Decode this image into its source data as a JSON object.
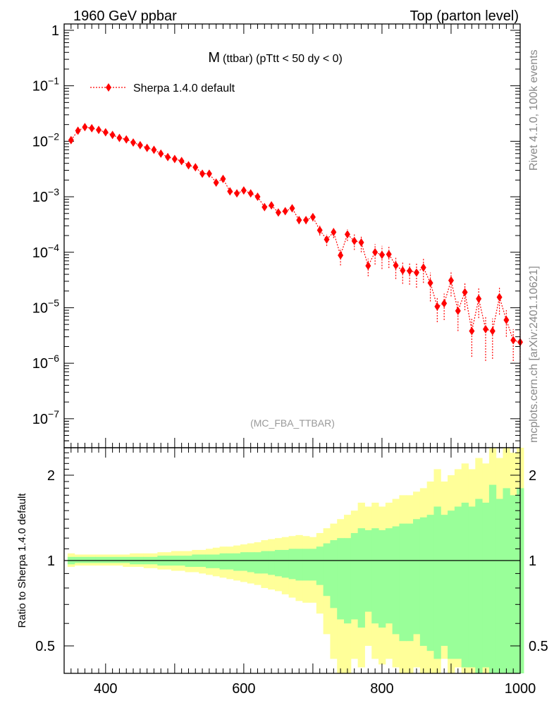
{
  "header": {
    "left": "1960 GeV ppbar",
    "right": "Top (parton level)"
  },
  "side_labels": {
    "rivet": "Rivet 4.1.0,  100k events",
    "mcplots": "mcplots.cern.ch [arXiv:2401.10621]"
  },
  "chart_data": [
    {
      "type": "line",
      "title_main": "M",
      "title_rest": "(ttbar) (pTtt < 50 dy < 0)",
      "watermark": "(MC_FBA_TTBAR)",
      "xlabel": "",
      "ylabel": "",
      "yscale": "log",
      "xlim": [
        340,
        1000
      ],
      "ylim": [
        3e-08,
        1.3
      ],
      "y_ticks": [
        {
          "value": 1,
          "base": "1",
          "exp": ""
        },
        {
          "value": 0.1,
          "base": "10",
          "exp": "−1"
        },
        {
          "value": 0.01,
          "base": "10",
          "exp": "−2"
        },
        {
          "value": 0.001,
          "base": "10",
          "exp": "−3"
        },
        {
          "value": 0.0001,
          "base": "10",
          "exp": "−4"
        },
        {
          "value": 1e-05,
          "base": "10",
          "exp": "−5"
        },
        {
          "value": 1e-06,
          "base": "10",
          "exp": "−6"
        },
        {
          "value": 1e-07,
          "base": "10",
          "exp": "−7"
        }
      ],
      "series": [
        {
          "name": "Sherpa 1.4.0 default",
          "color": "#ff0000",
          "x": [
            350,
            360,
            370,
            380,
            390,
            400,
            410,
            420,
            430,
            440,
            450,
            460,
            470,
            480,
            490,
            500,
            510,
            520,
            530,
            540,
            550,
            560,
            570,
            580,
            590,
            600,
            610,
            620,
            630,
            640,
            650,
            660,
            670,
            680,
            690,
            700,
            710,
            720,
            730,
            740,
            750,
            760,
            770,
            780,
            790,
            800,
            810,
            820,
            830,
            840,
            850,
            860,
            870,
            880,
            890,
            900,
            910,
            920,
            930,
            940,
            950,
            960,
            970,
            980,
            990,
            1000
          ],
          "y": [
            0.0105,
            0.0155,
            0.018,
            0.0172,
            0.016,
            0.0145,
            0.013,
            0.0115,
            0.0108,
            0.0095,
            0.0085,
            0.0076,
            0.007,
            0.006,
            0.0052,
            0.0048,
            0.0044,
            0.0037,
            0.0034,
            0.0026,
            0.0026,
            0.0018,
            0.0021,
            0.00125,
            0.00115,
            0.0013,
            0.00115,
            0.001,
            0.00065,
            0.0007,
            0.00052,
            0.00055,
            0.00062,
            0.00038,
            0.00038,
            0.00043,
            0.00025,
            0.00017,
            0.00023,
            8.8e-05,
            0.00021,
            0.00016,
            0.00015,
            5.7e-05,
            0.0001,
            9e-05,
            9.2e-05,
            5.8e-05,
            4.7e-05,
            4.6e-05,
            4.3e-05,
            5.3e-05,
            2.8e-05,
            1.05e-05,
            1.2e-05,
            3.1e-05,
            8.8e-06,
            1.9e-05,
            3.8e-06,
            1.45e-05,
            4.1e-06,
            3.8e-06,
            1.55e-05,
            6e-06,
            2.6e-06,
            2.4e-06
          ],
          "y_err_lo": [
            0.0003,
            0.0004,
            0.0005,
            0.0005,
            0.0004,
            0.0004,
            0.0004,
            0.0003,
            0.0003,
            0.0003,
            0.0003,
            0.0003,
            0.0003,
            0.0002,
            0.0002,
            0.0002,
            0.0002,
            0.0002,
            0.0002,
            0.0002,
            0.0002,
            0.00015,
            0.00015,
            0.0001,
            0.0001,
            0.0001,
            0.0001,
            0.0001,
            7e-05,
            8e-05,
            6e-05,
            7e-05,
            8e-05,
            6e-05,
            6e-05,
            7e-05,
            5e-05,
            4e-05,
            5e-05,
            3e-05,
            5e-05,
            5e-05,
            5e-05,
            2e-05,
            4e-05,
            4e-05,
            4e-05,
            2.5e-05,
            2e-05,
            2e-05,
            2e-05,
            2.5e-05,
            1.5e-05,
            5e-06,
            6e-06,
            1.5e-05,
            5e-06,
            1e-05,
            2.5e-06,
            8e-06,
            3e-06,
            2.6e-06,
            8e-06,
            3e-06,
            1.5e-06,
            1.4e-06
          ],
          "y_err_hi": [
            0.0003,
            0.0004,
            0.0005,
            0.0005,
            0.0004,
            0.0004,
            0.0004,
            0.0003,
            0.0003,
            0.0003,
            0.0003,
            0.0003,
            0.0003,
            0.0002,
            0.0002,
            0.0002,
            0.0002,
            0.0002,
            0.0002,
            0.0002,
            0.0002,
            0.00015,
            0.00015,
            0.0001,
            0.0001,
            0.0001,
            0.0001,
            0.0001,
            7e-05,
            8e-05,
            6e-05,
            7e-05,
            8e-05,
            6e-05,
            6e-05,
            7e-05,
            5e-05,
            4e-05,
            5e-05,
            3e-05,
            5e-05,
            5e-05,
            5e-05,
            2e-05,
            4e-05,
            4e-05,
            4e-05,
            2.5e-05,
            2e-05,
            2e-05,
            2e-05,
            2.5e-05,
            1.5e-05,
            5e-06,
            6e-06,
            1.5e-05,
            5e-06,
            1e-05,
            2.5e-06,
            8e-06,
            3e-06,
            2.6e-06,
            8e-06,
            3e-06,
            1.5e-06,
            1.4e-06
          ],
          "legend_position": "top-left"
        }
      ]
    },
    {
      "type": "area",
      "title": "",
      "ylabel": "Ratio to Sherpa 1.4.0 default",
      "xlabel": "",
      "yscale": "log",
      "xlim": [
        340,
        1000
      ],
      "ylim": [
        0.4,
        2.5
      ],
      "x_ticks": [
        400,
        600,
        800,
        1000
      ],
      "y_ticks": [
        {
          "value": 0.5,
          "label": "0.5"
        },
        {
          "value": 1,
          "label": "1"
        },
        {
          "value": 2,
          "label": "2"
        }
      ],
      "reference_line": 1,
      "series": [
        {
          "name": "Stat. uncertainty (yellow band)",
          "color": "#ffff99",
          "x": [
            350,
            360,
            370,
            380,
            390,
            400,
            410,
            420,
            430,
            440,
            450,
            460,
            470,
            480,
            490,
            500,
            510,
            520,
            530,
            540,
            550,
            560,
            570,
            580,
            590,
            600,
            610,
            620,
            630,
            640,
            650,
            660,
            670,
            680,
            690,
            700,
            710,
            720,
            730,
            740,
            750,
            760,
            770,
            780,
            790,
            800,
            810,
            820,
            830,
            840,
            850,
            860,
            870,
            880,
            890,
            900,
            910,
            920,
            930,
            940,
            950,
            960,
            970,
            980,
            990,
            1000
          ],
          "upper": [
            1.06,
            1.05,
            1.05,
            1.05,
            1.05,
            1.05,
            1.05,
            1.05,
            1.05,
            1.06,
            1.06,
            1.06,
            1.06,
            1.07,
            1.07,
            1.08,
            1.08,
            1.08,
            1.09,
            1.09,
            1.1,
            1.11,
            1.12,
            1.12,
            1.13,
            1.14,
            1.15,
            1.16,
            1.18,
            1.19,
            1.2,
            1.21,
            1.22,
            1.23,
            1.22,
            1.21,
            1.25,
            1.3,
            1.35,
            1.4,
            1.45,
            1.5,
            1.6,
            1.55,
            1.6,
            1.55,
            1.6,
            1.65,
            1.7,
            1.7,
            1.75,
            1.8,
            1.9,
            2.1,
            1.9,
            2.0,
            2.1,
            2.2,
            2.1,
            2.3,
            2.2,
            2.5,
            2.3,
            2.5,
            2.4,
            2.5
          ],
          "lower": [
            0.95,
            0.96,
            0.96,
            0.96,
            0.96,
            0.96,
            0.96,
            0.96,
            0.95,
            0.95,
            0.95,
            0.94,
            0.94,
            0.93,
            0.93,
            0.92,
            0.92,
            0.91,
            0.91,
            0.9,
            0.89,
            0.88,
            0.87,
            0.86,
            0.85,
            0.84,
            0.83,
            0.82,
            0.8,
            0.79,
            0.78,
            0.76,
            0.74,
            0.72,
            0.71,
            0.71,
            0.65,
            0.55,
            0.45,
            0.4,
            0.4,
            0.45,
            0.42,
            0.5,
            0.45,
            0.43,
            0.45,
            0.42,
            0.4,
            0.4,
            0.42,
            0.4,
            0.4,
            0.4,
            0.45,
            0.4,
            0.42,
            0.4,
            0.4,
            0.4,
            0.4,
            0.4,
            0.4,
            0.4,
            0.4,
            0.4
          ]
        },
        {
          "name": "Stat. uncertainty (green band)",
          "color": "#99ff99",
          "x": [
            350,
            360,
            370,
            380,
            390,
            400,
            410,
            420,
            430,
            440,
            450,
            460,
            470,
            480,
            490,
            500,
            510,
            520,
            530,
            540,
            550,
            560,
            570,
            580,
            590,
            600,
            610,
            620,
            630,
            640,
            650,
            660,
            670,
            680,
            690,
            700,
            710,
            720,
            730,
            740,
            750,
            760,
            770,
            780,
            790,
            800,
            810,
            820,
            830,
            840,
            850,
            860,
            870,
            880,
            890,
            900,
            910,
            920,
            930,
            940,
            950,
            960,
            970,
            980,
            990,
            1000
          ],
          "upper": [
            1.03,
            1.03,
            1.03,
            1.03,
            1.03,
            1.03,
            1.03,
            1.03,
            1.03,
            1.03,
            1.03,
            1.03,
            1.03,
            1.04,
            1.04,
            1.04,
            1.04,
            1.04,
            1.05,
            1.05,
            1.05,
            1.05,
            1.06,
            1.06,
            1.06,
            1.07,
            1.07,
            1.07,
            1.08,
            1.08,
            1.09,
            1.09,
            1.1,
            1.1,
            1.1,
            1.1,
            1.12,
            1.15,
            1.18,
            1.2,
            1.2,
            1.25,
            1.3,
            1.28,
            1.3,
            1.28,
            1.3,
            1.32,
            1.35,
            1.35,
            1.4,
            1.42,
            1.45,
            1.55,
            1.45,
            1.5,
            1.55,
            1.6,
            1.55,
            1.65,
            1.6,
            1.85,
            1.65,
            1.8,
            1.7,
            1.8
          ],
          "lower": [
            0.97,
            0.98,
            0.98,
            0.98,
            0.98,
            0.98,
            0.98,
            0.98,
            0.98,
            0.97,
            0.97,
            0.97,
            0.97,
            0.96,
            0.96,
            0.96,
            0.96,
            0.95,
            0.95,
            0.95,
            0.94,
            0.94,
            0.93,
            0.93,
            0.92,
            0.92,
            0.91,
            0.9,
            0.9,
            0.89,
            0.88,
            0.87,
            0.86,
            0.85,
            0.85,
            0.85,
            0.82,
            0.75,
            0.68,
            0.62,
            0.6,
            0.62,
            0.58,
            0.66,
            0.6,
            0.58,
            0.6,
            0.55,
            0.52,
            0.52,
            0.55,
            0.5,
            0.48,
            0.45,
            0.5,
            0.45,
            0.45,
            0.42,
            0.42,
            0.4,
            0.42,
            0.4,
            0.4,
            0.4,
            0.4,
            0.4
          ]
        }
      ]
    }
  ]
}
